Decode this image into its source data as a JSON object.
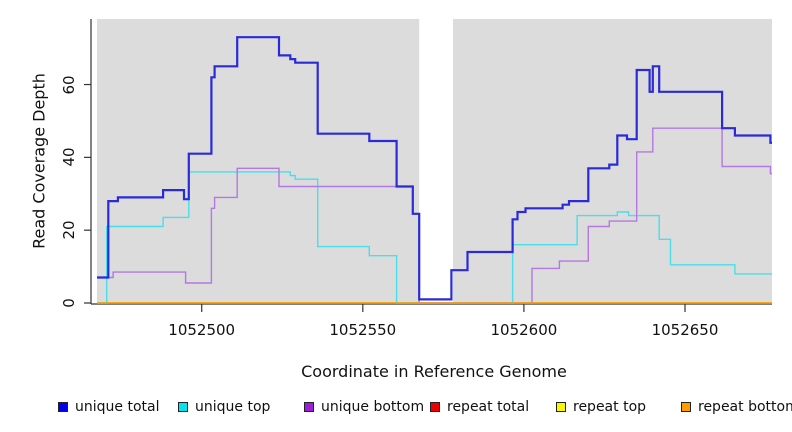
{
  "chart_data": {
    "type": "line",
    "subtype": "step-after",
    "title": "",
    "xlabel": "Coordinate in Reference Genome",
    "ylabel": "Read Coverage Depth",
    "xlim": [
      1052467.5,
      1052677
    ],
    "ylim": [
      0,
      78
    ],
    "grid": false,
    "plot_background": "#dcdcdc",
    "masked_region": {
      "x_start": 1052567.5,
      "x_end": 1052578,
      "color": "#ffffff"
    },
    "xticks": [
      {
        "value": 1052500,
        "label": "1052500"
      },
      {
        "value": 1052550,
        "label": "1052550"
      },
      {
        "value": 1052600,
        "label": "1052600"
      },
      {
        "value": 1052650,
        "label": "1052650"
      }
    ],
    "yticks": [
      {
        "value": 0,
        "label": "0"
      },
      {
        "value": 20,
        "label": "20"
      },
      {
        "value": 40,
        "label": "40"
      },
      {
        "value": 60,
        "label": "60"
      }
    ],
    "series": [
      {
        "name": "unique total",
        "color": "#2a2ad6",
        "width": 2.2,
        "points": [
          [
            1052467.5,
            7
          ],
          [
            1052471,
            28
          ],
          [
            1052474,
            29
          ],
          [
            1052488,
            31
          ],
          [
            1052494.5,
            28.5
          ],
          [
            1052496,
            41
          ],
          [
            1052503,
            62
          ],
          [
            1052504,
            65
          ],
          [
            1052511,
            73
          ],
          [
            1052524,
            68
          ],
          [
            1052527.5,
            67
          ],
          [
            1052529,
            66
          ],
          [
            1052536,
            46.5
          ],
          [
            1052552,
            44.5
          ],
          [
            1052560.5,
            32
          ],
          [
            1052565.5,
            24.5
          ],
          [
            1052567.5,
            1
          ],
          [
            1052577.5,
            9
          ],
          [
            1052582.5,
            14
          ],
          [
            1052596.5,
            23
          ],
          [
            1052598,
            25
          ],
          [
            1052600.5,
            26
          ],
          [
            1052612,
            27
          ],
          [
            1052614,
            28
          ],
          [
            1052620,
            37
          ],
          [
            1052626.5,
            38
          ],
          [
            1052629,
            46
          ],
          [
            1052632,
            45
          ],
          [
            1052635,
            64
          ],
          [
            1052639,
            58
          ],
          [
            1052640,
            65
          ],
          [
            1052642,
            58
          ],
          [
            1052661.5,
            48
          ],
          [
            1052665.5,
            46
          ],
          [
            1052676.5,
            44
          ]
        ]
      },
      {
        "name": "unique top",
        "color": "#49dee8",
        "width": 1.4,
        "points": [
          [
            1052467.5,
            0
          ],
          [
            1052470.5,
            21
          ],
          [
            1052488,
            23.5
          ],
          [
            1052496,
            36
          ],
          [
            1052527.5,
            35
          ],
          [
            1052529,
            34
          ],
          [
            1052536,
            15.5
          ],
          [
            1052552,
            13
          ],
          [
            1052560.5,
            0
          ],
          [
            1052596.5,
            16
          ],
          [
            1052616.5,
            24
          ],
          [
            1052629,
            25
          ],
          [
            1052632.5,
            24
          ],
          [
            1052642,
            17.5
          ],
          [
            1052645.5,
            10.5
          ],
          [
            1052665.5,
            8
          ]
        ]
      },
      {
        "name": "unique bottom",
        "color": "#b577e2",
        "width": 1.4,
        "points": [
          [
            1052467.5,
            7
          ],
          [
            1052472.5,
            8.5
          ],
          [
            1052495,
            5.5
          ],
          [
            1052503,
            26
          ],
          [
            1052504,
            29
          ],
          [
            1052511,
            37
          ],
          [
            1052524,
            32
          ],
          [
            1052565.5,
            24.5
          ],
          [
            1052567.5,
            0
          ],
          [
            1052602.5,
            9.5
          ],
          [
            1052611,
            11.5
          ],
          [
            1052620,
            21
          ],
          [
            1052626.5,
            22.5
          ],
          [
            1052635,
            41.5
          ],
          [
            1052640,
            48
          ],
          [
            1052661.5,
            37.5
          ],
          [
            1052676.5,
            35.5
          ]
        ]
      },
      {
        "name": "repeat total",
        "color": "#e02020",
        "width": 1.3,
        "points": [
          [
            1052467.5,
            0
          ]
        ]
      },
      {
        "name": "repeat top",
        "color": "#f2f200",
        "width": 1.3,
        "points": [
          [
            1052467.5,
            0
          ]
        ]
      },
      {
        "name": "repeat bottom",
        "color": "#ff9d00",
        "width": 1.6,
        "points": [
          [
            1052467.5,
            0
          ]
        ]
      }
    ],
    "draw_order": [
      3,
      4,
      1,
      2,
      5,
      0
    ],
    "legend": {
      "position": "bottom",
      "items": [
        {
          "label": "unique total",
          "color": "#0000ee"
        },
        {
          "label": "unique top",
          "color": "#00e5ee"
        },
        {
          "label": "unique bottom",
          "color": "#9b1fd8"
        },
        {
          "label": "repeat total",
          "color": "#ee0000"
        },
        {
          "label": "repeat top",
          "color": "#f7f700"
        },
        {
          "label": "repeat bottom",
          "color": "#ff9d00"
        }
      ]
    }
  }
}
